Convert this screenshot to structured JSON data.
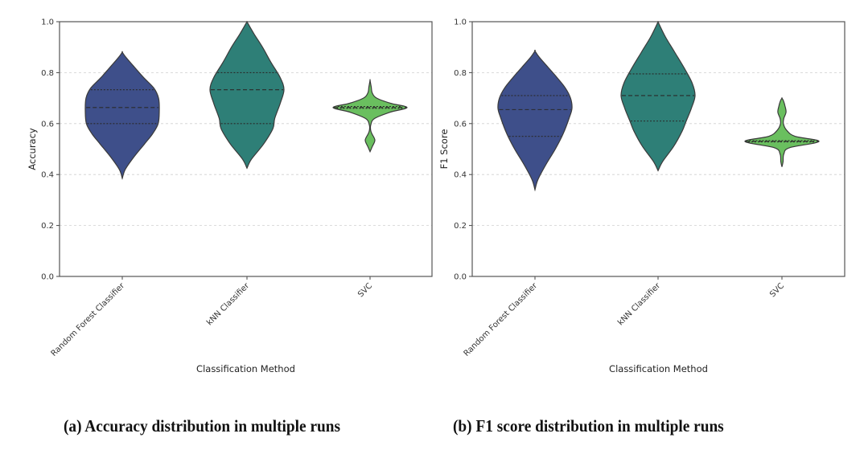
{
  "chart_data": [
    {
      "type": "violin",
      "panel": "a",
      "caption": "(a) Accuracy distribution in multiple runs",
      "xlabel": "Classification Method",
      "ylabel": "Accuracy",
      "ylim": [
        0.0,
        1.0
      ],
      "yticks": [
        "0.0",
        "0.2",
        "0.4",
        "0.6",
        "0.8",
        "1.0"
      ],
      "grid": "y-dashed",
      "categories": [
        "Random Forest Classifier",
        "kNN Classifier",
        "SVC"
      ],
      "series": [
        {
          "name": "Random Forest Classifier",
          "color": "#3e4f8a",
          "min": 0.385,
          "max": 0.88,
          "q1": 0.6,
          "median": 0.663,
          "q3": 0.733,
          "profile": [
            [
              0.385,
              0.0
            ],
            [
              0.42,
              0.08
            ],
            [
              0.47,
              0.32
            ],
            [
              0.52,
              0.6
            ],
            [
              0.56,
              0.82
            ],
            [
              0.6,
              0.97
            ],
            [
              0.65,
              1.0
            ],
            [
              0.7,
              0.98
            ],
            [
              0.74,
              0.85
            ],
            [
              0.78,
              0.58
            ],
            [
              0.82,
              0.34
            ],
            [
              0.86,
              0.1
            ],
            [
              0.88,
              0.0
            ]
          ]
        },
        {
          "name": "kNN Classifier",
          "color": "#2e7f77",
          "min": 0.425,
          "max": 1.0,
          "q1": 0.6,
          "median": 0.733,
          "q3": 0.8,
          "profile": [
            [
              0.425,
              0.0
            ],
            [
              0.46,
              0.12
            ],
            [
              0.52,
              0.45
            ],
            [
              0.58,
              0.7
            ],
            [
              0.62,
              0.75
            ],
            [
              0.68,
              0.9
            ],
            [
              0.733,
              1.0
            ],
            [
              0.78,
              0.9
            ],
            [
              0.84,
              0.65
            ],
            [
              0.9,
              0.42
            ],
            [
              0.95,
              0.2
            ],
            [
              0.99,
              0.04
            ],
            [
              1.0,
              0.0
            ]
          ]
        },
        {
          "name": "SVC",
          "color": "#6abf5f",
          "min": 0.49,
          "max": 0.77,
          "q1": 0.66,
          "median": 0.663,
          "q3": 0.667,
          "profile": [
            [
              0.49,
              0.0
            ],
            [
              0.51,
              0.06
            ],
            [
              0.535,
              0.13
            ],
            [
              0.56,
              0.05
            ],
            [
              0.575,
              0.015
            ],
            [
              0.595,
              0.02
            ],
            [
              0.62,
              0.12
            ],
            [
              0.645,
              0.55
            ],
            [
              0.663,
              1.0
            ],
            [
              0.68,
              0.55
            ],
            [
              0.7,
              0.18
            ],
            [
              0.72,
              0.06
            ],
            [
              0.745,
              0.03
            ],
            [
              0.77,
              0.0
            ]
          ]
        }
      ]
    },
    {
      "type": "violin",
      "panel": "b",
      "caption": "(b) F1 score distribution in multiple runs",
      "xlabel": "Classification Method",
      "ylabel": "F1 Score",
      "ylim": [
        0.0,
        1.0
      ],
      "yticks": [
        "0.0",
        "0.2",
        "0.4",
        "0.6",
        "0.8",
        "1.0"
      ],
      "grid": "y-dashed",
      "categories": [
        "Random Forest Classifier",
        "kNN Classifier",
        "SVC"
      ],
      "series": [
        {
          "name": "Random Forest Classifier",
          "color": "#3e4f8a",
          "min": 0.34,
          "max": 0.885,
          "q1": 0.55,
          "median": 0.655,
          "q3": 0.71,
          "profile": [
            [
              0.34,
              0.0
            ],
            [
              0.38,
              0.08
            ],
            [
              0.44,
              0.3
            ],
            [
              0.5,
              0.55
            ],
            [
              0.56,
              0.76
            ],
            [
              0.62,
              0.92
            ],
            [
              0.66,
              1.0
            ],
            [
              0.7,
              0.96
            ],
            [
              0.74,
              0.82
            ],
            [
              0.78,
              0.6
            ],
            [
              0.82,
              0.36
            ],
            [
              0.86,
              0.12
            ],
            [
              0.885,
              0.0
            ]
          ]
        },
        {
          "name": "kNN Classifier",
          "color": "#2e7f77",
          "min": 0.415,
          "max": 1.0,
          "q1": 0.61,
          "median": 0.71,
          "q3": 0.795,
          "profile": [
            [
              0.415,
              0.0
            ],
            [
              0.45,
              0.12
            ],
            [
              0.51,
              0.42
            ],
            [
              0.57,
              0.65
            ],
            [
              0.61,
              0.76
            ],
            [
              0.66,
              0.9
            ],
            [
              0.71,
              1.0
            ],
            [
              0.76,
              0.92
            ],
            [
              0.82,
              0.7
            ],
            [
              0.88,
              0.45
            ],
            [
              0.94,
              0.2
            ],
            [
              0.99,
              0.03
            ],
            [
              1.0,
              0.0
            ]
          ]
        },
        {
          "name": "SVC",
          "color": "#6abf5f",
          "min": 0.43,
          "max": 0.7,
          "q1": 0.528,
          "median": 0.53,
          "q3": 0.533,
          "profile": [
            [
              0.43,
              0.0
            ],
            [
              0.45,
              0.03
            ],
            [
              0.48,
              0.05
            ],
            [
              0.505,
              0.2
            ],
            [
              0.53,
              1.0
            ],
            [
              0.55,
              0.35
            ],
            [
              0.575,
              0.12
            ],
            [
              0.6,
              0.04
            ],
            [
              0.62,
              0.05
            ],
            [
              0.645,
              0.11
            ],
            [
              0.67,
              0.08
            ],
            [
              0.69,
              0.04
            ],
            [
              0.7,
              0.0
            ]
          ]
        }
      ]
    }
  ]
}
